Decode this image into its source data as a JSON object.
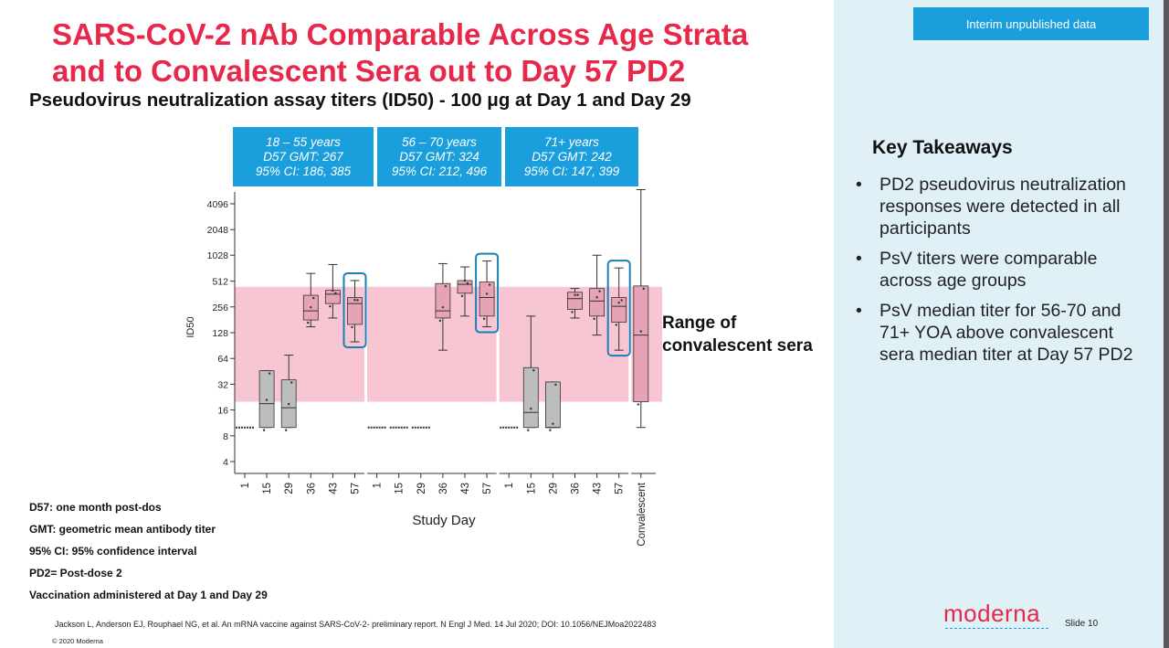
{
  "header": {
    "title_line1": "SARS-CoV-2 nAb Comparable Across Age Strata",
    "title_line2": "and to Convalescent Sera out to Day 57 PD2",
    "subtitle": "Pseudovirus neutralization assay titers (ID50) - 100 μg at Day 1 and Day 29"
  },
  "badge": "Interim unpublished data",
  "takeaways": {
    "title": "Key Takeaways",
    "items": [
      "PD2 pseudovirus neutralization responses were detected in all participants",
      "PsV titers were comparable across age groups",
      "PsV median titer for 56-70 and 71+ YOA above convalescent sera median titer at Day 57 PD2"
    ]
  },
  "groups": [
    {
      "line1": "18 – 55 years",
      "line2": "D57 GMT: 267",
      "line3": "95% CI: 186, 385"
    },
    {
      "line1": "56 – 70 years",
      "line2": "D57 GMT: 324",
      "line3": "95% CI: 212, 496"
    },
    {
      "line1": "71+ years",
      "line2": "D57 GMT: 242",
      "line3": "95% CI: 147, 399"
    }
  ],
  "range_label": {
    "line1": "Range of",
    "line2": "convalescent sera"
  },
  "notes": [
    "D57: one month post-dos",
    "GMT: geometric mean antibody titer",
    "95% CI: 95% confidence interval",
    "PD2= Post-dose 2",
    "Vaccination administered at Day 1 and Day 29"
  ],
  "citation": "Jackson L, Anderson EJ, Rouphael NG, et al.  An mRNA vaccine against SARS-CoV-2- preliminary report.  N Engl J Med. 14 Jul 2020; DOI: 10.1056/NEJMoa2022483",
  "copyright": "© 2020 Moderna",
  "logo": "moderna",
  "slide": "Slide  10",
  "colors": {
    "accent_red": "#e8284a",
    "accent_blue": "#1a9fdc",
    "sidebar_bg": "#dff0f6",
    "range_band": "#f7c6d2"
  },
  "chart_data": {
    "type": "box",
    "ylabel": "ID50",
    "xlabel": "Study Day",
    "y_scale": "log2",
    "yticks": [
      4,
      8,
      16,
      32,
      64,
      128,
      256,
      512,
      1028,
      2048,
      4096
    ],
    "ytick_labels": [
      "4",
      "8",
      "16",
      "32",
      "64",
      "128",
      "256",
      "512",
      "1028",
      "2048",
      "4096"
    ],
    "categories": [
      "1",
      "15",
      "29",
      "36",
      "43",
      "57",
      "1",
      "15",
      "29",
      "36",
      "43",
      "57",
      "1",
      "15",
      "29",
      "36",
      "43",
      "57",
      "Convalescent"
    ],
    "convalescent_range": [
      20,
      440
    ],
    "highlighted_indices": [
      5,
      11,
      17
    ],
    "boxes": [
      {
        "lo": 10,
        "q1": 10,
        "median": 10,
        "q3": 10,
        "hi": 10
      },
      {
        "lo": 10,
        "q1": 10,
        "median": 19,
        "q3": 46,
        "hi": 46
      },
      {
        "lo": 10,
        "q1": 10,
        "median": 17,
        "q3": 36,
        "hi": 70
      },
      {
        "lo": 150,
        "q1": 180,
        "median": 230,
        "q3": 350,
        "hi": 630
      },
      {
        "lo": 190,
        "q1": 280,
        "median": 360,
        "q3": 400,
        "hi": 800
      },
      {
        "lo": 100,
        "q1": 160,
        "median": 280,
        "q3": 330,
        "hi": 520
      },
      {
        "lo": 10,
        "q1": 10,
        "median": 10,
        "q3": 10,
        "hi": 10
      },
      {
        "lo": 10,
        "q1": 10,
        "median": 10,
        "q3": 10,
        "hi": 10
      },
      {
        "lo": 10,
        "q1": 10,
        "median": 10,
        "q3": 10,
        "hi": 10
      },
      {
        "lo": 80,
        "q1": 190,
        "median": 230,
        "q3": 480,
        "hi": 820
      },
      {
        "lo": 200,
        "q1": 370,
        "median": 470,
        "q3": 520,
        "hi": 750
      },
      {
        "lo": 150,
        "q1": 200,
        "median": 330,
        "q3": 500,
        "hi": 880
      },
      {
        "lo": 10,
        "q1": 10,
        "median": 10,
        "q3": 10,
        "hi": 10
      },
      {
        "lo": 10,
        "q1": 10,
        "median": 15,
        "q3": 50,
        "hi": 200
      },
      {
        "lo": 10,
        "q1": 10,
        "median": 10,
        "q3": 34,
        "hi": 34
      },
      {
        "lo": 190,
        "q1": 240,
        "median": 320,
        "q3": 380,
        "hi": 420
      },
      {
        "lo": 120,
        "q1": 200,
        "median": 300,
        "q3": 420,
        "hi": 1028
      },
      {
        "lo": 80,
        "q1": 170,
        "median": 260,
        "q3": 330,
        "hi": 730
      },
      {
        "lo": 10,
        "q1": 20,
        "median": 120,
        "q3": 450,
        "hi": 6000
      }
    ]
  }
}
